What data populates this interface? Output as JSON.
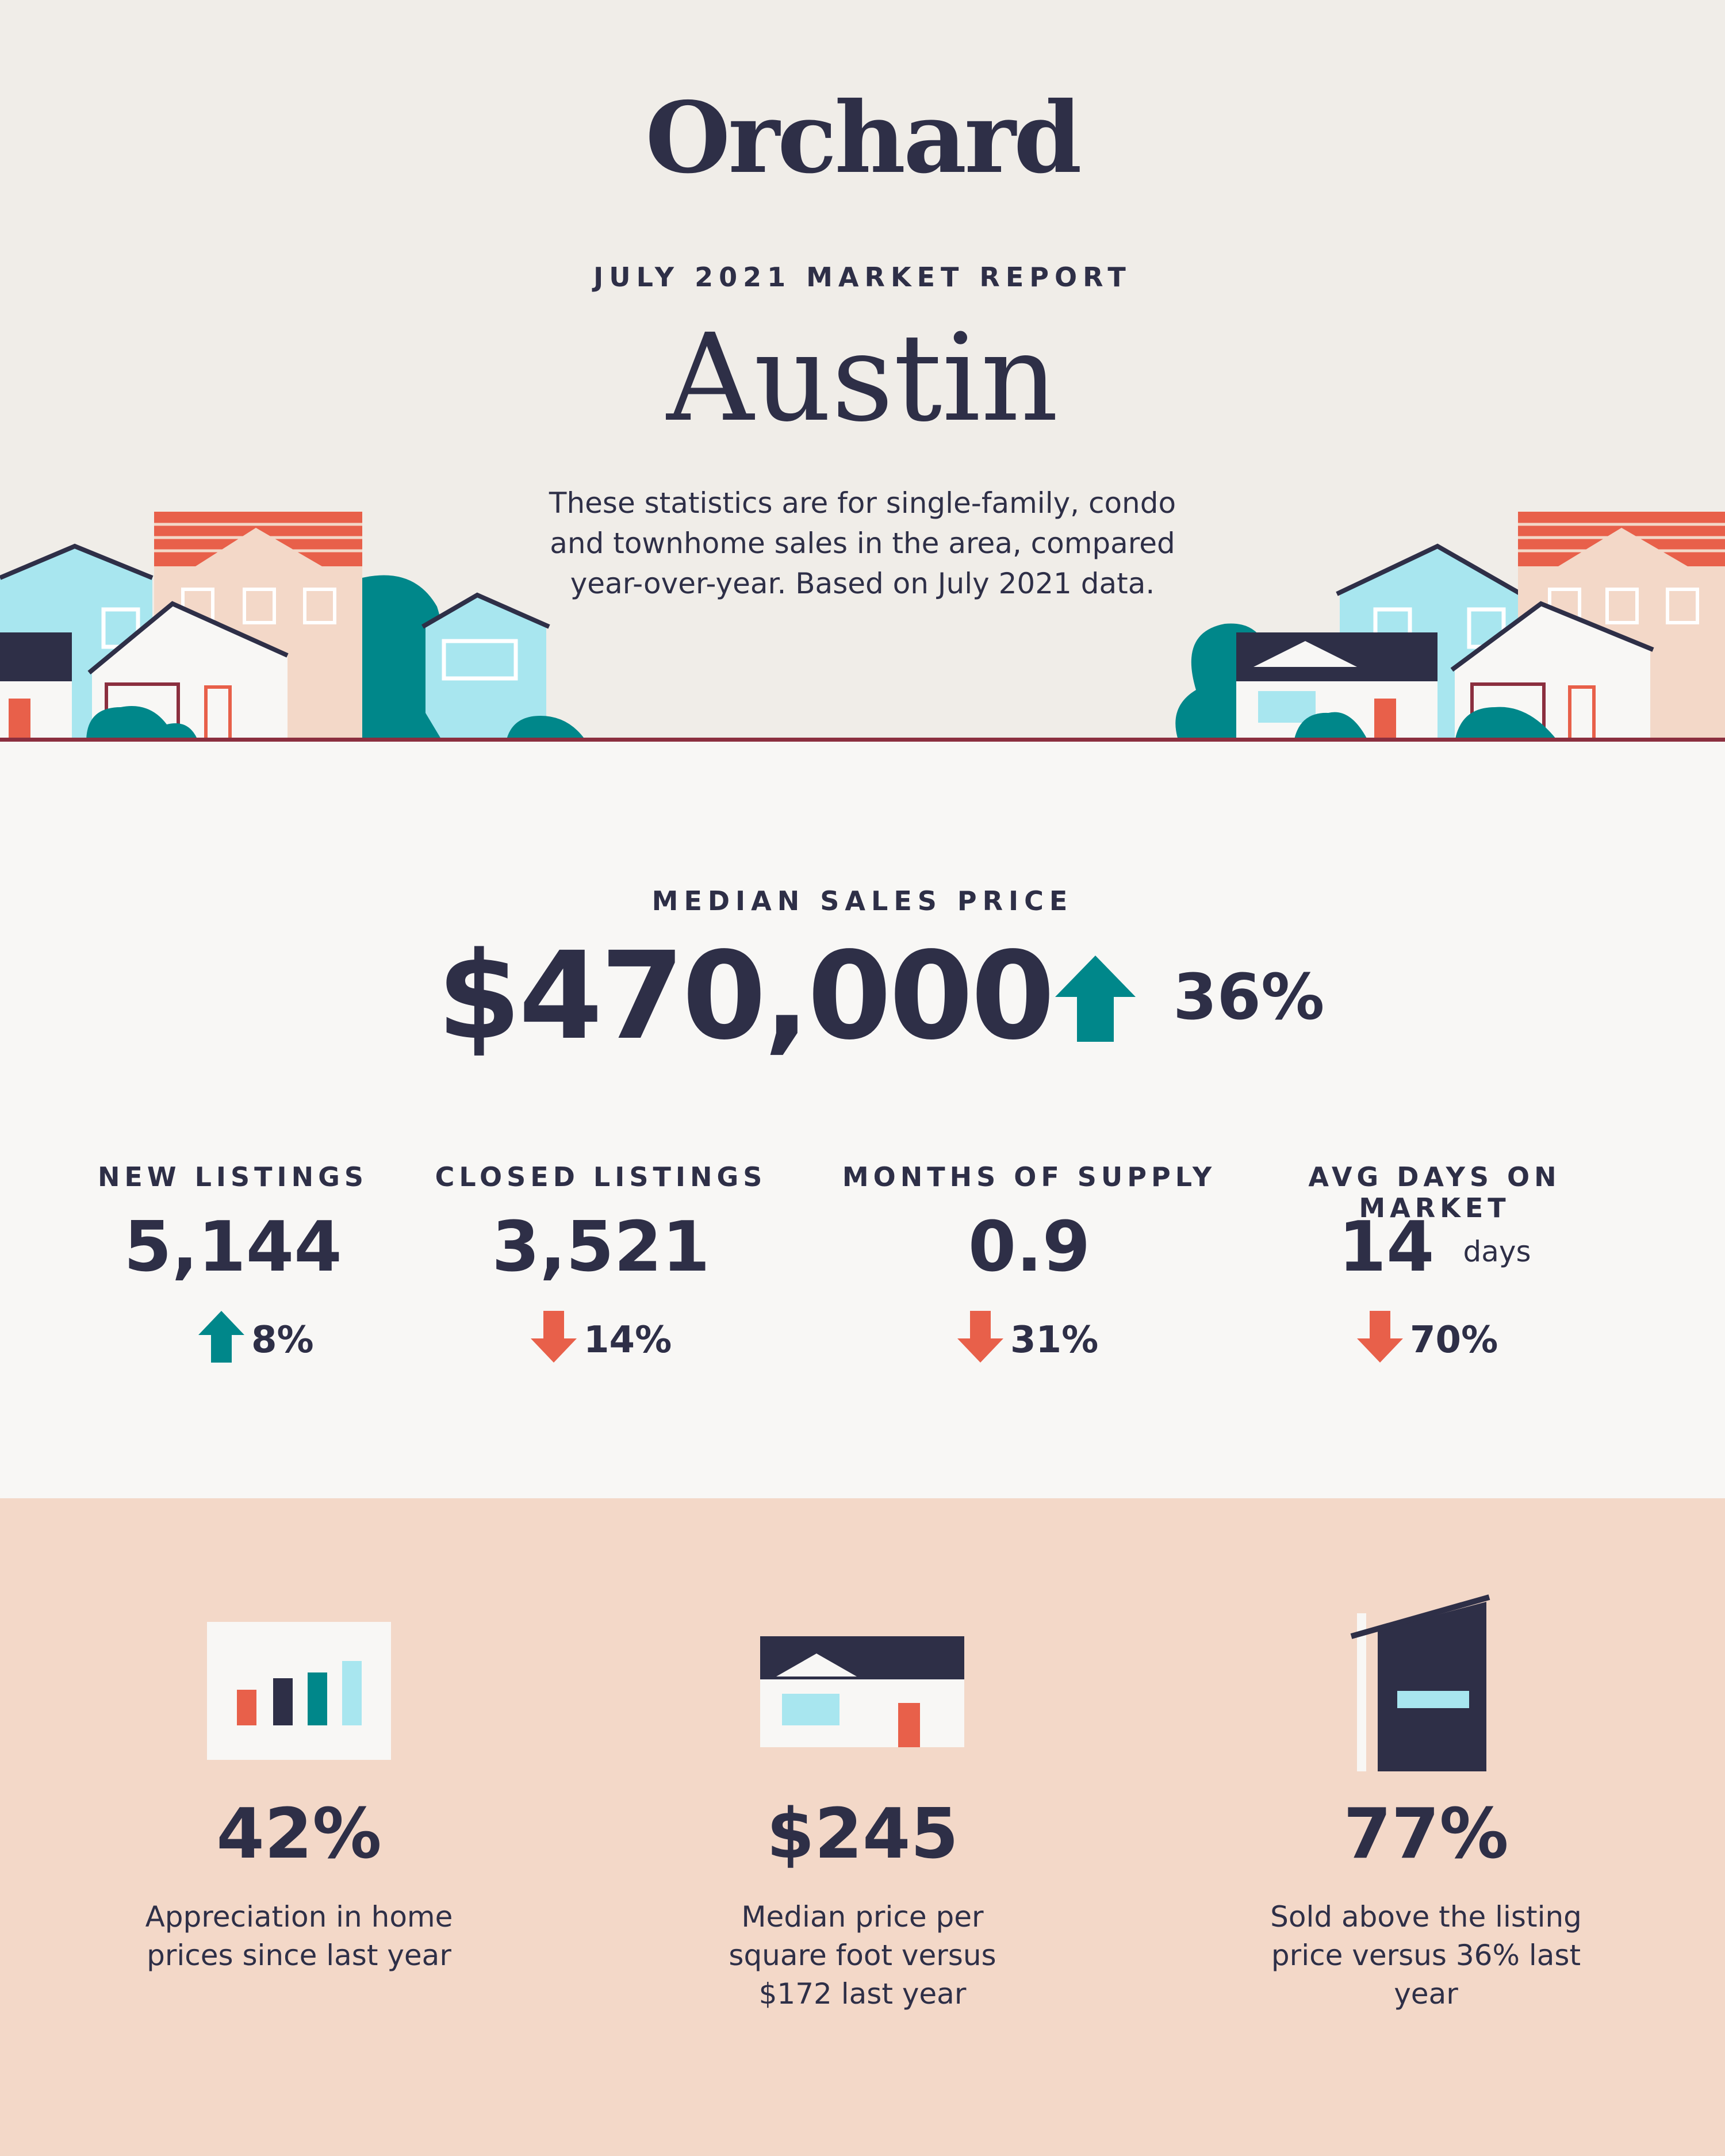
{
  "brand": {
    "logo_text": "Orchard"
  },
  "report": {
    "eyebrow": "JULY 2021 MARKET REPORT",
    "city": "Austin",
    "intro": "These statistics are for single-family, condo and townhome sales in the area, compared year-over-year. Based on July 2021 data."
  },
  "median_sales_price": {
    "label": "MEDIAN SALES PRICE",
    "value": "$470,000",
    "direction": "up",
    "change": "36%"
  },
  "metrics": [
    {
      "label": "NEW LISTINGS",
      "value": "5,144",
      "unit": "",
      "direction": "up",
      "change": "8%"
    },
    {
      "label": "CLOSED LISTINGS",
      "value": "3,521",
      "unit": "",
      "direction": "down",
      "change": "14%"
    },
    {
      "label": "MONTHS OF SUPPLY",
      "value": "0.9",
      "unit": "",
      "direction": "down",
      "change": "31%"
    },
    {
      "label": "AVG DAYS ON MARKET",
      "value": "14",
      "unit": "days",
      "direction": "down",
      "change": "70%"
    }
  ],
  "highlights": [
    {
      "icon": "bar-chart-icon",
      "value": "42%",
      "description": "Appreciation in home prices since last year"
    },
    {
      "icon": "house-icon",
      "value": "$245",
      "description": "Median price per square foot versus $172 last year"
    },
    {
      "icon": "sold-sign-icon",
      "value": "77%",
      "description": "Sold above the listing price versus 36% last year"
    }
  ],
  "colors": {
    "navy": "#2e2f47",
    "teal": "#00878a",
    "coral": "#e8604a",
    "light_blue": "#a8e6ef",
    "peach": "#f3d8c8",
    "header_bg": "#f0ede8",
    "stats_bg": "#f8f7f5"
  }
}
